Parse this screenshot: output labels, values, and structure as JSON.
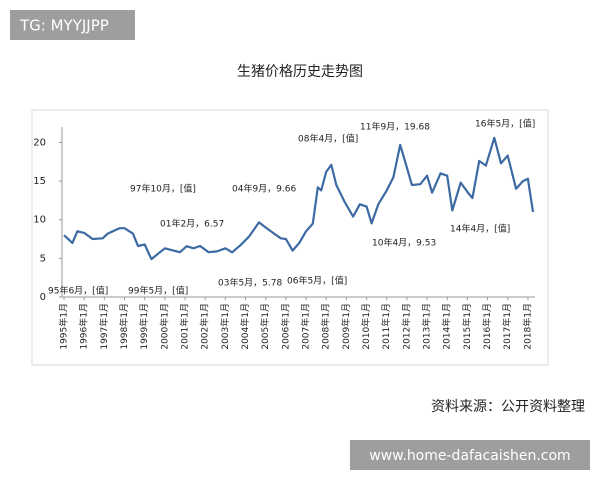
{
  "watermark_top": "TG: MYYJJPP",
  "watermark_bottom": "www.home-dafacaishen.com",
  "source": "资料来源：公开资料整理",
  "chart_data": {
    "type": "line",
    "title": "生猪价格历史走势图",
    "x": [
      "1995-01",
      "1995-06",
      "1995-09",
      "1996-01",
      "1996-06",
      "1996-12",
      "1997-03",
      "1997-10",
      "1998-01",
      "1998-06",
      "1998-09",
      "1999-01",
      "1999-05",
      "1999-09",
      "2000-01",
      "2000-06",
      "2000-10",
      "2001-02",
      "2001-06",
      "2001-10",
      "2002-03",
      "2002-08",
      "2003-01",
      "2003-05",
      "2003-10",
      "2004-03",
      "2004-09",
      "2005-01",
      "2005-06",
      "2005-10",
      "2006-01",
      "2006-05",
      "2006-09",
      "2007-01",
      "2007-05",
      "2007-08",
      "2007-10",
      "2008-01",
      "2008-04",
      "2008-07",
      "2008-12",
      "2009-05",
      "2009-09",
      "2010-01",
      "2010-04",
      "2010-08",
      "2011-01",
      "2011-05",
      "2011-09",
      "2011-12",
      "2012-04",
      "2012-09",
      "2013-01",
      "2013-04",
      "2013-09",
      "2014-01",
      "2014-04",
      "2014-09",
      "2015-01",
      "2015-04",
      "2015-08",
      "2015-12",
      "2016-05",
      "2016-09",
      "2017-01",
      "2017-06",
      "2017-10",
      "2018-01",
      "2018-04"
    ],
    "values": [
      8.0,
      7.0,
      8.5,
      8.3,
      7.5,
      7.6,
      8.2,
      8.9,
      8.9,
      8.2,
      6.6,
      6.8,
      4.9,
      5.6,
      6.3,
      6.0,
      5.8,
      6.57,
      6.3,
      6.6,
      5.8,
      5.9,
      6.3,
      5.78,
      6.7,
      7.8,
      9.66,
      9.0,
      8.2,
      7.6,
      7.5,
      6.0,
      7.0,
      8.5,
      9.5,
      14.2,
      13.8,
      16.2,
      17.1,
      14.5,
      12.3,
      10.4,
      12.0,
      11.7,
      9.53,
      12.0,
      13.8,
      15.5,
      19.68,
      17.5,
      14.5,
      14.6,
      15.7,
      13.5,
      16.0,
      15.7,
      11.2,
      14.8,
      13.6,
      12.8,
      17.6,
      17.0,
      20.6,
      17.3,
      18.3,
      14.0,
      15.0,
      15.3,
      11.0
    ],
    "color": "#3d6aa3",
    "ylim": [
      0,
      22
    ],
    "yticks": [
      0,
      5,
      10,
      15,
      20
    ],
    "xticks": [
      {
        "value": "1995-01",
        "label": "1995年1月"
      },
      {
        "value": "1996-01",
        "label": "1996年1月"
      },
      {
        "value": "1997-01",
        "label": "1997年1月"
      },
      {
        "value": "1998-01",
        "label": "1998年1月"
      },
      {
        "value": "1999-01",
        "label": "1999年1月"
      },
      {
        "value": "2000-01",
        "label": "2000年1月"
      },
      {
        "value": "2001-01",
        "label": "2001年1月"
      },
      {
        "value": "2002-01",
        "label": "2002年1月"
      },
      {
        "value": "2003-01",
        "label": "2003年1月"
      },
      {
        "value": "2004-01",
        "label": "2004年1月"
      },
      {
        "value": "2005-01",
        "label": "2005年1月"
      },
      {
        "value": "2006-01",
        "label": "2006年1月"
      },
      {
        "value": "2007-01",
        "label": "2007年1月"
      },
      {
        "value": "2008-01",
        "label": "2008年1月"
      },
      {
        "value": "2009-01",
        "label": "2009年1月"
      },
      {
        "value": "2010-01",
        "label": "2010年1月"
      },
      {
        "value": "2011-01",
        "label": "2011年1月"
      },
      {
        "value": "2012-01",
        "label": "2012年1月"
      },
      {
        "value": "2013-01",
        "label": "2013年1月"
      },
      {
        "value": "2014-01",
        "label": "2014年1月"
      },
      {
        "value": "2015-01",
        "label": "2015年1月"
      },
      {
        "value": "2016-01",
        "label": "2016年1月"
      },
      {
        "value": "2017-01",
        "label": "2017年1月"
      },
      {
        "value": "2018-01",
        "label": "2018年1月"
      }
    ],
    "annotations": [
      "95年6月，[值]",
      "97年10月，[值]",
      "99年5月，[值]",
      "01年2月，6.57",
      "03年5月，5.78",
      "04年9月，9.66",
      "06年5月，[值]",
      "08年4月，[值]",
      "11年9月，19.68",
      "10年4月，9.53",
      "14年4月，[值]",
      "16年5月，[值]"
    ]
  }
}
